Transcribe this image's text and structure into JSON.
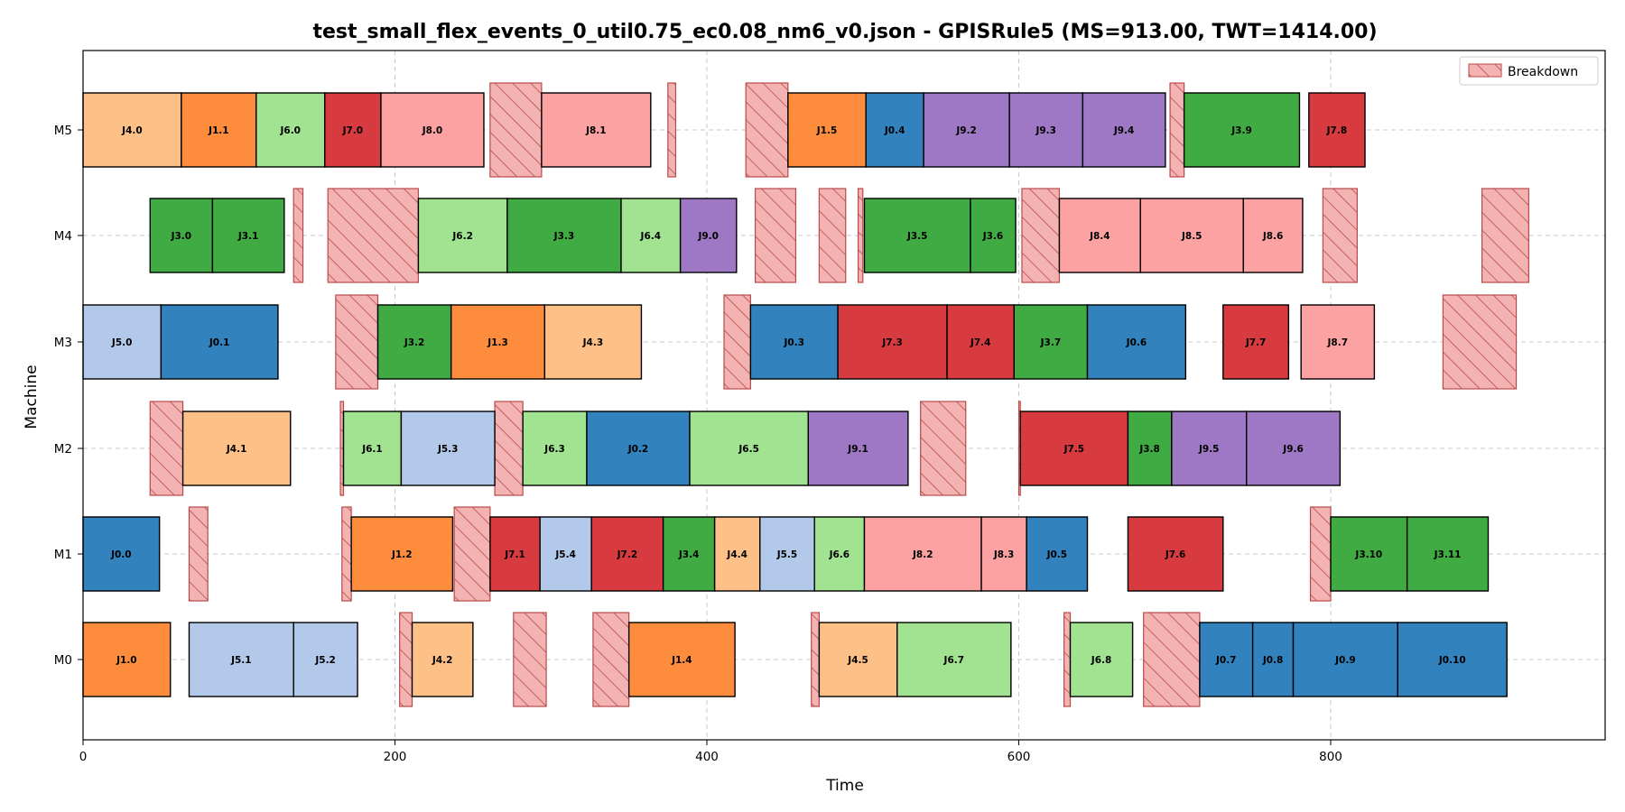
{
  "chart_data": {
    "type": "gantt",
    "title": "test_small_flex_events_0_util0.75_ec0.08_nm6_v0.json - GPISRule5 (MS=913.00, TWT=1414.00)",
    "xlabel": "Time",
    "ylabel": "Machine",
    "xlim": [
      0,
      980
    ],
    "xticks": [
      0,
      200,
      400,
      600,
      800
    ],
    "machines": [
      "M0",
      "M1",
      "M2",
      "M3",
      "M4",
      "M5"
    ],
    "grid": true,
    "legend": {
      "placement": "top-right",
      "entries": [
        "Breakdown"
      ]
    },
    "colors": {
      "J0": "#3182bd",
      "J1": "#fd8d3c",
      "J3": "#41ab43",
      "J4": "#fdc086",
      "J5": "#b3c9ea",
      "J6": "#a1e391",
      "J7": "#d73b3f",
      "J8": "#fda2a2",
      "J9": "#9e78c4",
      "breakdown_fill": "#f4b3b3",
      "breakdown_edge": "#b94a4a"
    },
    "operations": [
      {
        "machine": "M0",
        "label": "J1.0",
        "job": "J1",
        "start": 0,
        "end": 56
      },
      {
        "machine": "M0",
        "label": "J5.1",
        "job": "J5",
        "start": 68,
        "end": 135
      },
      {
        "machine": "M0",
        "label": "J5.2",
        "job": "J5",
        "start": 135,
        "end": 176
      },
      {
        "machine": "M0",
        "label": "J4.2",
        "job": "J4",
        "start": 211,
        "end": 250
      },
      {
        "machine": "M0",
        "label": "J1.4",
        "job": "J1",
        "start": 350,
        "end": 418
      },
      {
        "machine": "M0",
        "label": "J4.5",
        "job": "J4",
        "start": 472,
        "end": 522
      },
      {
        "machine": "M0",
        "label": "J6.7",
        "job": "J6",
        "start": 522,
        "end": 595
      },
      {
        "machine": "M0",
        "label": "J6.8",
        "job": "J6",
        "start": 633,
        "end": 673
      },
      {
        "machine": "M0",
        "label": "J0.7",
        "job": "J0",
        "start": 716,
        "end": 750
      },
      {
        "machine": "M0",
        "label": "J0.8",
        "job": "J0",
        "start": 750,
        "end": 776
      },
      {
        "machine": "M0",
        "label": "J0.9",
        "job": "J0",
        "start": 776,
        "end": 843
      },
      {
        "machine": "M0",
        "label": "J0.10",
        "job": "J0",
        "start": 843,
        "end": 913
      },
      {
        "machine": "M1",
        "label": "J0.0",
        "job": "J0",
        "start": 0,
        "end": 49
      },
      {
        "machine": "M1",
        "label": "J1.2",
        "job": "J1",
        "start": 172,
        "end": 237
      },
      {
        "machine": "M1",
        "label": "J7.1",
        "job": "J7",
        "start": 261,
        "end": 293
      },
      {
        "machine": "M1",
        "label": "J5.4",
        "job": "J5",
        "start": 293,
        "end": 326
      },
      {
        "machine": "M1",
        "label": "J7.2",
        "job": "J7",
        "start": 326,
        "end": 372
      },
      {
        "machine": "M1",
        "label": "J3.4",
        "job": "J3",
        "start": 372,
        "end": 405
      },
      {
        "machine": "M1",
        "label": "J4.4",
        "job": "J4",
        "start": 405,
        "end": 434
      },
      {
        "machine": "M1",
        "label": "J5.5",
        "job": "J5",
        "start": 434,
        "end": 469
      },
      {
        "machine": "M1",
        "label": "J6.6",
        "job": "J6",
        "start": 469,
        "end": 501
      },
      {
        "machine": "M1",
        "label": "J8.2",
        "job": "J8",
        "start": 501,
        "end": 576
      },
      {
        "machine": "M1",
        "label": "J8.3",
        "job": "J8",
        "start": 576,
        "end": 605
      },
      {
        "machine": "M1",
        "label": "J0.5",
        "job": "J0",
        "start": 605,
        "end": 644
      },
      {
        "machine": "M1",
        "label": "J7.6",
        "job": "J7",
        "start": 670,
        "end": 731
      },
      {
        "machine": "M1",
        "label": "J3.10",
        "job": "J3",
        "start": 800,
        "end": 849
      },
      {
        "machine": "M1",
        "label": "J3.11",
        "job": "J3",
        "start": 849,
        "end": 901
      },
      {
        "machine": "M2",
        "label": "J4.1",
        "job": "J4",
        "start": 64,
        "end": 133
      },
      {
        "machine": "M2",
        "label": "J6.1",
        "job": "J6",
        "start": 167,
        "end": 204
      },
      {
        "machine": "M2",
        "label": "J5.3",
        "job": "J5",
        "start": 204,
        "end": 264
      },
      {
        "machine": "M2",
        "label": "J6.3",
        "job": "J6",
        "start": 282,
        "end": 323
      },
      {
        "machine": "M2",
        "label": "J0.2",
        "job": "J0",
        "start": 323,
        "end": 389
      },
      {
        "machine": "M2",
        "label": "J6.5",
        "job": "J6",
        "start": 389,
        "end": 465
      },
      {
        "machine": "M2",
        "label": "J9.1",
        "job": "J9",
        "start": 465,
        "end": 529
      },
      {
        "machine": "M2",
        "label": "J7.5",
        "job": "J7",
        "start": 601,
        "end": 670
      },
      {
        "machine": "M2",
        "label": "J3.8",
        "job": "J3",
        "start": 670,
        "end": 698
      },
      {
        "machine": "M2",
        "label": "J9.5",
        "job": "J9",
        "start": 698,
        "end": 746
      },
      {
        "machine": "M2",
        "label": "J9.6",
        "job": "J9",
        "start": 746,
        "end": 806
      },
      {
        "machine": "M3",
        "label": "J5.0",
        "job": "J5",
        "start": 0,
        "end": 50
      },
      {
        "machine": "M3",
        "label": "J0.1",
        "job": "J0",
        "start": 50,
        "end": 125
      },
      {
        "machine": "M3",
        "label": "J3.2",
        "job": "J3",
        "start": 189,
        "end": 236
      },
      {
        "machine": "M3",
        "label": "J1.3",
        "job": "J1",
        "start": 236,
        "end": 296
      },
      {
        "machine": "M3",
        "label": "J4.3",
        "job": "J4",
        "start": 296,
        "end": 358
      },
      {
        "machine": "M3",
        "label": "J0.3",
        "job": "J0",
        "start": 428,
        "end": 484
      },
      {
        "machine": "M3",
        "label": "J7.3",
        "job": "J7",
        "start": 484,
        "end": 554
      },
      {
        "machine": "M3",
        "label": "J7.4",
        "job": "J7",
        "start": 554,
        "end": 597
      },
      {
        "machine": "M3",
        "label": "J3.7",
        "job": "J3",
        "start": 597,
        "end": 644
      },
      {
        "machine": "M3",
        "label": "J0.6",
        "job": "J0",
        "start": 644,
        "end": 707
      },
      {
        "machine": "M3",
        "label": "J7.7",
        "job": "J7",
        "start": 731,
        "end": 773
      },
      {
        "machine": "M3",
        "label": "J8.7",
        "job": "J8",
        "start": 781,
        "end": 828
      },
      {
        "machine": "M4",
        "label": "J3.0",
        "job": "J3",
        "start": 43,
        "end": 83
      },
      {
        "machine": "M4",
        "label": "J3.1",
        "job": "J3",
        "start": 83,
        "end": 129
      },
      {
        "machine": "M4",
        "label": "J6.2",
        "job": "J6",
        "start": 215,
        "end": 272
      },
      {
        "machine": "M4",
        "label": "J3.3",
        "job": "J3",
        "start": 272,
        "end": 345
      },
      {
        "machine": "M4",
        "label": "J6.4",
        "job": "J6",
        "start": 345,
        "end": 383
      },
      {
        "machine": "M4",
        "label": "J9.0",
        "job": "J9",
        "start": 383,
        "end": 419
      },
      {
        "machine": "M4",
        "label": "J3.5",
        "job": "J3",
        "start": 501,
        "end": 569
      },
      {
        "machine": "M4",
        "label": "J3.6",
        "job": "J3",
        "start": 569,
        "end": 598
      },
      {
        "machine": "M4",
        "label": "J8.4",
        "job": "J8",
        "start": 626,
        "end": 678
      },
      {
        "machine": "M4",
        "label": "J8.5",
        "job": "J8",
        "start": 678,
        "end": 744
      },
      {
        "machine": "M4",
        "label": "J8.6",
        "job": "J8",
        "start": 744,
        "end": 782
      },
      {
        "machine": "M5",
        "label": "J4.0",
        "job": "J4",
        "start": 0,
        "end": 63
      },
      {
        "machine": "M5",
        "label": "J1.1",
        "job": "J1",
        "start": 63,
        "end": 111
      },
      {
        "machine": "M5",
        "label": "J6.0",
        "job": "J6",
        "start": 111,
        "end": 155
      },
      {
        "machine": "M5",
        "label": "J7.0",
        "job": "J7",
        "start": 155,
        "end": 191
      },
      {
        "machine": "M5",
        "label": "J8.0",
        "job": "J8",
        "start": 191,
        "end": 257
      },
      {
        "machine": "M5",
        "label": "J8.1",
        "job": "J8",
        "start": 294,
        "end": 364
      },
      {
        "machine": "M5",
        "label": "J1.5",
        "job": "J1",
        "start": 452,
        "end": 502
      },
      {
        "machine": "M5",
        "label": "J0.4",
        "job": "J0",
        "start": 502,
        "end": 539
      },
      {
        "machine": "M5",
        "label": "J9.2",
        "job": "J9",
        "start": 539,
        "end": 594
      },
      {
        "machine": "M5",
        "label": "J9.3",
        "job": "J9",
        "start": 594,
        "end": 641
      },
      {
        "machine": "M5",
        "label": "J9.4",
        "job": "J9",
        "start": 641,
        "end": 694
      },
      {
        "machine": "M5",
        "label": "J3.9",
        "job": "J3",
        "start": 706,
        "end": 780
      },
      {
        "machine": "M5",
        "label": "J7.8",
        "job": "J7",
        "start": 786,
        "end": 822
      }
    ],
    "breakdowns": [
      {
        "machine": "M0",
        "start": 203,
        "end": 211
      },
      {
        "machine": "M0",
        "start": 276,
        "end": 297
      },
      {
        "machine": "M0",
        "start": 327,
        "end": 350
      },
      {
        "machine": "M0",
        "start": 467,
        "end": 472
      },
      {
        "machine": "M0",
        "start": 629,
        "end": 633
      },
      {
        "machine": "M0",
        "start": 680,
        "end": 716
      },
      {
        "machine": "M1",
        "start": 68,
        "end": 80
      },
      {
        "machine": "M1",
        "start": 166,
        "end": 172
      },
      {
        "machine": "M1",
        "start": 238,
        "end": 261
      },
      {
        "machine": "M1",
        "start": 787,
        "end": 800
      },
      {
        "machine": "M2",
        "start": 43,
        "end": 64
      },
      {
        "machine": "M2",
        "start": 165,
        "end": 167
      },
      {
        "machine": "M2",
        "start": 264,
        "end": 282
      },
      {
        "machine": "M2",
        "start": 537,
        "end": 566
      },
      {
        "machine": "M2",
        "start": 600,
        "end": 601
      },
      {
        "machine": "M3",
        "start": 162,
        "end": 189
      },
      {
        "machine": "M3",
        "start": 411,
        "end": 428
      },
      {
        "machine": "M3",
        "start": 872,
        "end": 919
      },
      {
        "machine": "M4",
        "start": 135,
        "end": 141
      },
      {
        "machine": "M4",
        "start": 157,
        "end": 215
      },
      {
        "machine": "M4",
        "start": 431,
        "end": 457
      },
      {
        "machine": "M4",
        "start": 472,
        "end": 489
      },
      {
        "machine": "M4",
        "start": 497,
        "end": 500
      },
      {
        "machine": "M4",
        "start": 602,
        "end": 626
      },
      {
        "machine": "M4",
        "start": 795,
        "end": 817
      },
      {
        "machine": "M4",
        "start": 897,
        "end": 927
      },
      {
        "machine": "M5",
        "start": 261,
        "end": 294
      },
      {
        "machine": "M5",
        "start": 375,
        "end": 380
      },
      {
        "machine": "M5",
        "start": 425,
        "end": 452
      },
      {
        "machine": "M5",
        "start": 697,
        "end": 706
      }
    ]
  }
}
